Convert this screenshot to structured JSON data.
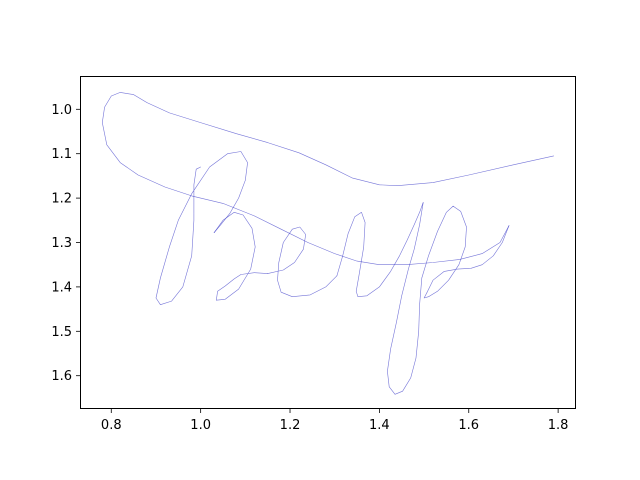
{
  "chart_data": {
    "type": "line",
    "title": "",
    "xlabel": "",
    "ylabel": "",
    "xlim": [
      0.73,
      1.84
    ],
    "ylim": [
      1.675,
      0.925
    ],
    "y_inverted": true,
    "grid": false,
    "legend": "none",
    "x_ticks": [
      "0.8",
      "1.0",
      "1.2",
      "1.4",
      "1.6",
      "1.8"
    ],
    "y_ticks": [
      "1.0",
      "1.1",
      "1.2",
      "1.3",
      "1.4",
      "1.5",
      "1.6"
    ],
    "series": [
      {
        "color": "#3b3bc8",
        "strokes": [
          [
            [
              1.79,
              1.105
            ],
            [
              1.7,
              1.125
            ],
            [
              1.6,
              1.148
            ],
            [
              1.52,
              1.165
            ],
            [
              1.44,
              1.172
            ],
            [
              1.4,
              1.17
            ],
            [
              1.34,
              1.155
            ],
            [
              1.28,
              1.125
            ],
            [
              1.22,
              1.098
            ],
            [
              1.15,
              1.075
            ],
            [
              1.08,
              1.055
            ],
            [
              1.0,
              1.03
            ],
            [
              0.93,
              1.008
            ],
            [
              0.88,
              0.985
            ],
            [
              0.85,
              0.967
            ],
            [
              0.82,
              0.962
            ],
            [
              0.8,
              0.97
            ],
            [
              0.785,
              0.995
            ],
            [
              0.78,
              1.03
            ],
            [
              0.79,
              1.08
            ],
            [
              0.82,
              1.12
            ],
            [
              0.86,
              1.148
            ],
            [
              0.92,
              1.175
            ],
            [
              0.98,
              1.195
            ],
            [
              1.05,
              1.212
            ],
            [
              1.12,
              1.24
            ],
            [
              1.18,
              1.27
            ],
            [
              1.24,
              1.3
            ],
            [
              1.3,
              1.325
            ],
            [
              1.35,
              1.342
            ],
            [
              1.4,
              1.35
            ],
            [
              1.46,
              1.35
            ],
            [
              1.52,
              1.345
            ],
            [
              1.58,
              1.338
            ],
            [
              1.63,
              1.325
            ],
            [
              1.67,
              1.3
            ],
            [
              1.69,
              1.262
            ]
          ],
          [
            [
              1.0,
              1.13
            ],
            [
              0.99,
              1.135
            ],
            [
              0.985,
              1.17
            ],
            [
              0.985,
              1.25
            ],
            [
              0.98,
              1.33
            ],
            [
              0.96,
              1.4
            ],
            [
              0.935,
              1.432
            ],
            [
              0.91,
              1.44
            ],
            [
              0.9,
              1.425
            ],
            [
              0.91,
              1.38
            ],
            [
              0.93,
              1.31
            ],
            [
              0.95,
              1.25
            ],
            [
              0.98,
              1.19
            ],
            [
              1.02,
              1.13
            ],
            [
              1.06,
              1.1
            ],
            [
              1.09,
              1.095
            ],
            [
              1.105,
              1.12
            ],
            [
              1.1,
              1.16
            ],
            [
              1.085,
              1.2
            ],
            [
              1.065,
              1.235
            ],
            [
              1.045,
              1.26
            ],
            [
              1.03,
              1.278
            ]
          ],
          [
            [
              1.03,
              1.278
            ],
            [
              1.05,
              1.25
            ],
            [
              1.075,
              1.232
            ],
            [
              1.095,
              1.238
            ],
            [
              1.115,
              1.268
            ],
            [
              1.122,
              1.31
            ],
            [
              1.112,
              1.36
            ],
            [
              1.085,
              1.405
            ],
            [
              1.055,
              1.428
            ],
            [
              1.035,
              1.43
            ],
            [
              1.038,
              1.41
            ],
            [
              1.055,
              1.398
            ],
            [
              1.075,
              1.382
            ],
            [
              1.09,
              1.372
            ],
            [
              1.12,
              1.368
            ],
            [
              1.15,
              1.37
            ]
          ],
          [
            [
              1.15,
              1.37
            ],
            [
              1.185,
              1.362
            ],
            [
              1.21,
              1.345
            ],
            [
              1.23,
              1.315
            ],
            [
              1.235,
              1.282
            ],
            [
              1.222,
              1.265
            ],
            [
              1.205,
              1.27
            ],
            [
              1.185,
              1.3
            ],
            [
              1.175,
              1.345
            ],
            [
              1.172,
              1.385
            ],
            [
              1.18,
              1.412
            ],
            [
              1.205,
              1.422
            ],
            [
              1.245,
              1.418
            ],
            [
              1.28,
              1.4
            ],
            [
              1.305,
              1.375
            ]
          ],
          [
            [
              1.305,
              1.375
            ],
            [
              1.318,
              1.33
            ],
            [
              1.33,
              1.28
            ],
            [
              1.345,
              1.242
            ],
            [
              1.36,
              1.232
            ],
            [
              1.368,
              1.255
            ],
            [
              1.365,
              1.31
            ],
            [
              1.355,
              1.37
            ],
            [
              1.348,
              1.41
            ],
            [
              1.352,
              1.422
            ],
            [
              1.372,
              1.42
            ],
            [
              1.4,
              1.4
            ],
            [
              1.425,
              1.365
            ],
            [
              1.445,
              1.33
            ],
            [
              1.462,
              1.295
            ],
            [
              1.478,
              1.26
            ],
            [
              1.49,
              1.232
            ],
            [
              1.498,
              1.21
            ]
          ],
          [
            [
              1.498,
              1.21
            ],
            [
              1.49,
              1.26
            ],
            [
              1.478,
              1.315
            ],
            [
              1.465,
              1.36
            ],
            [
              1.45,
              1.42
            ],
            [
              1.438,
              1.48
            ],
            [
              1.425,
              1.54
            ],
            [
              1.418,
              1.59
            ],
            [
              1.422,
              1.625
            ],
            [
              1.435,
              1.642
            ],
            [
              1.452,
              1.635
            ],
            [
              1.47,
              1.605
            ],
            [
              1.482,
              1.56
            ],
            [
              1.488,
              1.5
            ],
            [
              1.49,
              1.44
            ],
            [
              1.495,
              1.38
            ],
            [
              1.51,
              1.33
            ],
            [
              1.53,
              1.275
            ],
            [
              1.55,
              1.232
            ],
            [
              1.565,
              1.218
            ],
            [
              1.582,
              1.23
            ],
            [
              1.595,
              1.265
            ],
            [
              1.592,
              1.31
            ],
            [
              1.578,
              1.35
            ],
            [
              1.555,
              1.385
            ],
            [
              1.53,
              1.41
            ],
            [
              1.51,
              1.422
            ],
            [
              1.5,
              1.425
            ],
            [
              1.508,
              1.41
            ],
            [
              1.52,
              1.385
            ],
            [
              1.545,
              1.365
            ],
            [
              1.575,
              1.36
            ],
            [
              1.605,
              1.358
            ],
            [
              1.63,
              1.35
            ],
            [
              1.655,
              1.33
            ],
            [
              1.675,
              1.3
            ],
            [
              1.69,
              1.262
            ]
          ]
        ]
      }
    ]
  }
}
